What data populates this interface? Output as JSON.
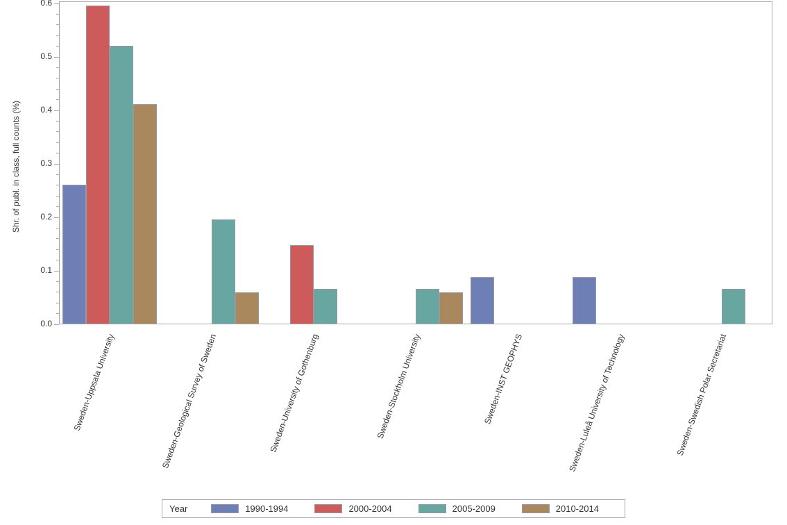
{
  "chart_data": {
    "type": "bar",
    "title": "",
    "xlabel": "",
    "ylabel": "Shr. of publ. in class, full counts (%)",
    "ylim": [
      0,
      0.6
    ],
    "ytick_step": 0.1,
    "ytick_minor_step": 0.02,
    "ytick_labels": [
      "0.0",
      "0.1",
      "0.2",
      "0.3",
      "0.4",
      "0.5",
      "0.6"
    ],
    "grid": false,
    "legend_position": "bottom",
    "legend_title": "Year",
    "categories": [
      "Sweden-Uppsala University",
      "Sweden-Geological Survey of Sweden",
      "Sweden-University of Gothenburg",
      "Sweden-Stockholm University",
      "Sweden-INST GEOPHYS",
      "Sweden-Luleå University of Technology",
      "Sweden-Swedish Polar Secretariat"
    ],
    "series": [
      {
        "name": "1990-1994",
        "color": "#6E7FB5",
        "values": [
          0.26,
          0,
          0,
          0,
          0.087,
          0.087,
          0
        ]
      },
      {
        "name": "2000-2004",
        "color": "#CD5B5C",
        "values": [
          0.595,
          0,
          0.147,
          0,
          0,
          0,
          0
        ]
      },
      {
        "name": "2005-2009",
        "color": "#68A7A1",
        "values": [
          0.52,
          0.195,
          0.065,
          0.065,
          0,
          0,
          0.065
        ]
      },
      {
        "name": "2010-2014",
        "color": "#A8885C",
        "values": [
          0.41,
          0.058,
          0,
          0.058,
          0,
          0,
          0
        ]
      }
    ],
    "colors": {
      "axis": "#a5a6ad",
      "bar_border": "#97999f",
      "text": "#333333"
    }
  }
}
